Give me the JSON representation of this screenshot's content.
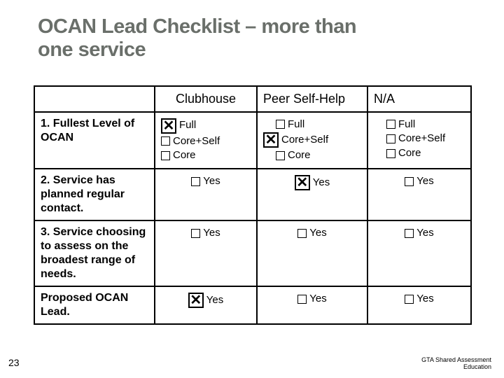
{
  "title_line1": "OCAN Lead Checklist – more than",
  "title_line2": "one service",
  "headers": {
    "col1": "Clubhouse",
    "col2": "Peer Self-Help",
    "col3": "N/A"
  },
  "rows": {
    "r1": {
      "label": "1. Fullest Level of OCAN"
    },
    "r2": {
      "label": "2. Service has planned regular contact."
    },
    "r3": {
      "label": "3. Service choosing to assess on the broadest range of needs."
    },
    "r4": {
      "label": "Proposed OCAN Lead."
    }
  },
  "opts": {
    "full": "Full",
    "coreself": "Core+Self",
    "core": "Core",
    "yes": "Yes"
  },
  "checks": {
    "r1c1_full": true,
    "r1c1_coreself": false,
    "r1c1_core": false,
    "r1c2_full": false,
    "r1c2_coreself": true,
    "r1c2_core": false,
    "r1c3_full": false,
    "r1c3_coreself": false,
    "r1c3_core": false,
    "r2c1": false,
    "r2c2": true,
    "r2c3": false,
    "r3c1": false,
    "r3c2": false,
    "r3c3": false,
    "r4c1": true,
    "r4c2": false,
    "r4c3": false
  },
  "footer": {
    "page": "23",
    "right1": "GTA Shared Assessment",
    "right2": "Education"
  }
}
